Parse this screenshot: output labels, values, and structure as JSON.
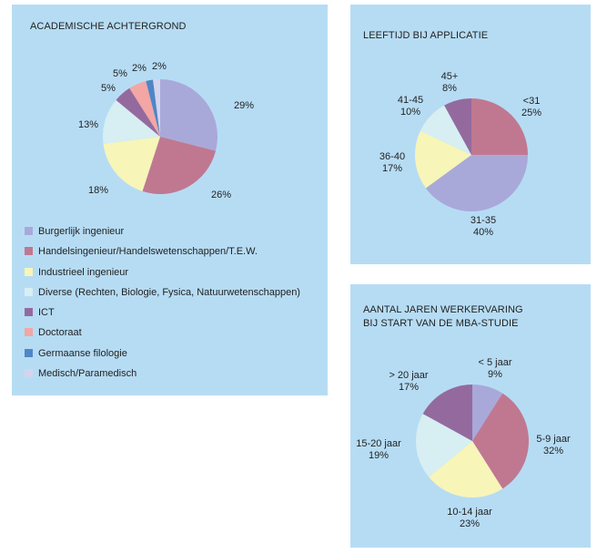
{
  "chart_data": [
    {
      "type": "pie",
      "title": "ACADEMISCHE ACHTERGROND",
      "categories": [
        "Burgerlijk ingenieur",
        "Handelsingenieur/Handelswetenschappen/T.E.W.",
        "Industrieel ingenieur",
        "Diverse (Rechten, Biologie, Fysica, Natuurwetenschappen)",
        "ICT",
        "Doctoraat",
        "Germaanse filologie",
        "Medisch/Paramedisch"
      ],
      "values": [
        29,
        26,
        18,
        13,
        5,
        5,
        2,
        2
      ],
      "labels": [
        "29%",
        "26%",
        "18%",
        "13%",
        "5%",
        "5%",
        "2%",
        "2%"
      ],
      "colors": [
        "#a9a9d9",
        "#c07891",
        "#f7f5b8",
        "#d7eef2",
        "#946a9e",
        "#f3a6a4",
        "#4f86c6",
        "#d4d4ee"
      ],
      "legend": "bottom"
    },
    {
      "type": "pie",
      "title": "LEEFTIJD BIJ APPLICATIE",
      "categories": [
        "<31",
        "31-35",
        "36-40",
        "41-45",
        "45+"
      ],
      "values": [
        25,
        40,
        17,
        10,
        8
      ],
      "labels": [
        [
          "<31",
          "25%"
        ],
        [
          "31-35",
          "40%"
        ],
        [
          "36-40",
          "17%"
        ],
        [
          "41-45",
          "10%"
        ],
        [
          "45+",
          "8%"
        ]
      ],
      "colors": [
        "#c07891",
        "#a9a9d9",
        "#f7f5b8",
        "#d7eef2",
        "#946a9e"
      ]
    },
    {
      "type": "pie",
      "title": [
        "AANTAL JAREN WERKERVARING",
        "BIJ START VAN DE MBA-STUDIE"
      ],
      "categories": [
        "< 5 jaar",
        "5-9 jaar",
        "10-14 jaar",
        "15-20 jaar",
        "> 20 jaar"
      ],
      "values": [
        9,
        32,
        23,
        19,
        17
      ],
      "labels": [
        [
          "< 5 jaar",
          "9%"
        ],
        [
          "5-9 jaar",
          "32%"
        ],
        [
          "10-14 jaar",
          "23%"
        ],
        [
          "15-20 jaar",
          "19%"
        ],
        [
          "> 20 jaar",
          "17%"
        ]
      ],
      "colors": [
        "#a9a9d9",
        "#c07891",
        "#f7f5b8",
        "#d7eef2",
        "#946a9e"
      ]
    }
  ]
}
